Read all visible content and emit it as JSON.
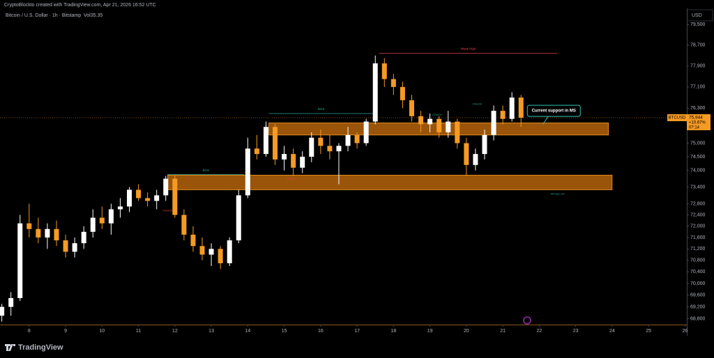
{
  "header": {
    "credit": "CryptoBlockto created with TradingView.com, Apr 21, 2026 16:52 UTC",
    "brand": "TradingView"
  },
  "chart_data": {
    "type": "candlestick",
    "title": "Bitcoin / U.S. Dollar · 1h · Bitstamp",
    "volume_label": "Vol35.35",
    "currency": "USD",
    "symbol": "BTCUSD",
    "last_price": {
      "value": 75944,
      "label": "75,944"
    },
    "change": "+10.67%",
    "countdown": "07:14",
    "log_scale": true,
    "up_color": "#ffffff",
    "down_color": "#f59a23",
    "x": [
      7.25,
      7.5,
      7.75,
      8.0,
      8.25,
      8.5,
      8.75,
      9.0,
      9.25,
      9.5,
      9.75,
      10.0,
      10.25,
      10.5,
      10.75,
      11.0,
      11.25,
      11.5,
      11.75,
      12.0,
      12.25,
      12.5,
      12.75,
      13.0,
      13.25,
      13.5,
      13.75,
      14.0,
      14.25,
      14.5,
      14.75,
      15.0,
      15.25,
      15.5,
      15.75,
      16.0,
      16.25,
      16.5,
      16.75,
      17.0,
      17.25,
      17.5,
      17.75,
      18.0,
      18.25,
      18.5,
      18.75,
      19.0,
      19.25,
      19.5,
      19.75,
      20.0,
      20.25,
      20.5,
      20.75,
      21.0,
      21.25,
      21.5
    ],
    "open": [
      68900,
      69200,
      69500,
      72100,
      71900,
      71600,
      71900,
      71500,
      71100,
      71400,
      71800,
      72300,
      72100,
      72600,
      72700,
      73300,
      73000,
      72900,
      73100,
      73700,
      72400,
      71700,
      71300,
      71000,
      71200,
      70700,
      71500,
      73100,
      74800,
      74600,
      75600,
      74400,
      74600,
      74100,
      74500,
      75200,
      74900,
      74700,
      74900,
      75300,
      75000,
      75800,
      78000,
      77400,
      77100,
      76600,
      76000,
      75700,
      75900,
      75400,
      75800,
      75000,
      74200,
      74600,
      75300,
      76200,
      75900,
      76700
    ],
    "high": [
      69300,
      69700,
      72400,
      72800,
      72300,
      72100,
      72200,
      71700,
      71600,
      72000,
      72600,
      72700,
      72800,
      73000,
      73400,
      73500,
      73200,
      73300,
      73800,
      73800,
      72600,
      72000,
      71600,
      71400,
      71300,
      71600,
      73300,
      75200,
      75300,
      75800,
      75700,
      74900,
      74800,
      74700,
      75400,
      75500,
      75300,
      75000,
      75600,
      75400,
      75900,
      78300,
      78200,
      77600,
      77300,
      76800,
      76200,
      76100,
      76000,
      76200,
      75900,
      75200,
      74800,
      75500,
      76400,
      76400,
      76900,
      76800
    ],
    "low": [
      68700,
      68900,
      69400,
      71600,
      71400,
      71200,
      71300,
      70900,
      70900,
      71200,
      71600,
      71900,
      71700,
      72300,
      72500,
      72900,
      72700,
      72600,
      72900,
      72300,
      71500,
      71100,
      70800,
      70600,
      70500,
      70600,
      71400,
      73000,
      74400,
      74500,
      74200,
      74000,
      73800,
      73900,
      74300,
      74600,
      74400,
      73500,
      74700,
      74800,
      74900,
      75700,
      77100,
      76800,
      76300,
      75800,
      75400,
      75400,
      75200,
      75200,
      74800,
      73800,
      74000,
      74400,
      75100,
      75700,
      75800,
      75600
    ],
    "close": [
      69200,
      69500,
      72100,
      71900,
      71600,
      71900,
      71500,
      71100,
      71400,
      71800,
      72300,
      72100,
      72600,
      72700,
      73300,
      73000,
      72900,
      73100,
      73700,
      72400,
      71700,
      71300,
      71000,
      71200,
      70700,
      71500,
      73100,
      74800,
      74600,
      75600,
      74400,
      74600,
      74100,
      74500,
      75200,
      74900,
      74700,
      74900,
      75300,
      75000,
      75800,
      78000,
      77400,
      77100,
      76600,
      76000,
      75700,
      75900,
      75400,
      75800,
      75000,
      74200,
      74600,
      75300,
      76200,
      75900,
      76700,
      75944
    ],
    "xlim": [
      7.2,
      26.05
    ],
    "xticks": [
      8,
      9,
      10,
      11,
      12,
      13,
      14,
      15,
      16,
      17,
      18,
      19,
      20,
      21,
      22,
      23,
      24,
      25,
      26
    ],
    "ylim": [
      68600,
      79700
    ],
    "yticks": [
      {
        "value": 79500,
        "label": "79,500"
      },
      {
        "value": 78700,
        "label": "78,700"
      },
      {
        "value": 77900,
        "label": "77,900"
      },
      {
        "value": 77100,
        "label": "77,100"
      },
      {
        "value": 76300,
        "label": "76,300"
      },
      {
        "value": 75000,
        "label": "75,000"
      },
      {
        "value": 74500,
        "label": "74,500"
      },
      {
        "value": 74000,
        "label": "74,000"
      },
      {
        "value": 73400,
        "label": "73,400"
      },
      {
        "value": 72800,
        "label": "72,800"
      },
      {
        "value": 72400,
        "label": "72,400"
      },
      {
        "value": 72000,
        "label": "72,000"
      },
      {
        "value": 71600,
        "label": "71,600"
      },
      {
        "value": 71200,
        "label": "71,200"
      },
      {
        "value": 70800,
        "label": "70,800"
      },
      {
        "value": 70400,
        "label": "70,400"
      },
      {
        "value": 70000,
        "label": "70,000"
      },
      {
        "value": 69600,
        "label": "69,600"
      },
      {
        "value": 69200,
        "label": "69,200"
      },
      {
        "value": 68800,
        "label": "68,800"
      }
    ],
    "zones": [
      {
        "x": [
          14.58,
          23.9
        ],
        "y": [
          75300,
          75750
        ]
      },
      {
        "x": [
          11.8,
          24.0
        ],
        "y": [
          73300,
          73830
        ]
      }
    ],
    "levels": [
      {
        "label": "BOS",
        "price": 76100,
        "x": [
          14.58,
          17.45
        ],
        "color": "#26a69a"
      },
      {
        "label": "BOS",
        "price": 73850,
        "x": [
          11.8,
          13.9
        ],
        "color": "#26a69a"
      },
      {
        "label": "Weak High",
        "price": 78390,
        "x": [
          17.6,
          22.5
        ],
        "color": "#e0404a"
      }
    ],
    "annotations": [
      {
        "text": "Strong Low",
        "x": 22.5,
        "y": 73150,
        "color": "#26a69a"
      },
      {
        "text": "CHoCH",
        "x": 19.2,
        "y": 76050,
        "color": "#26a69a"
      },
      {
        "text": "CHoCH",
        "x": 20.3,
        "y": 76450,
        "color": "#26a69a"
      },
      {
        "text": "CHoCH",
        "x": 11.8,
        "y": 72550,
        "color": "#e0404a"
      },
      {
        "text": "CHoCH",
        "x": 15.2,
        "y": 73700,
        "color": "#e0404a"
      }
    ],
    "callout": {
      "text": "Current support in MS",
      "x": 22.4,
      "y": 76200,
      "target_x": 22.1,
      "target_y": 75700
    }
  }
}
